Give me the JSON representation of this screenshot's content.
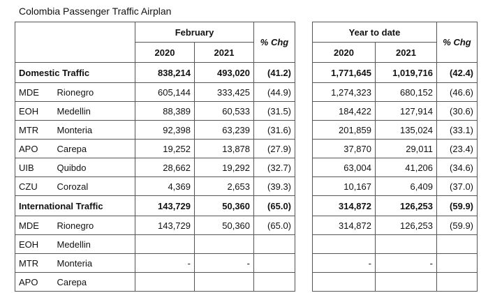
{
  "title": "Colombia Passenger Traffic Airplan",
  "header": {
    "february": "February",
    "ytd": "Year to date",
    "y2020": "2020",
    "y2021": "2021",
    "pct_chg": "% Chg"
  },
  "rows": [
    {
      "type": "section",
      "label": "Domestic Traffic",
      "feb2020": "838,214",
      "feb2021": "493,020",
      "feb_chg": "(41.2)",
      "ytd2020": "1,771,645",
      "ytd2021": "1,019,716",
      "ytd_chg": "(42.4)"
    },
    {
      "type": "item",
      "code": "MDE",
      "city": "Rionegro",
      "feb2020": "605,144",
      "feb2021": "333,425",
      "feb_chg": "(44.9)",
      "ytd2020": "1,274,323",
      "ytd2021": "680,152",
      "ytd_chg": "(46.6)"
    },
    {
      "type": "item",
      "code": "EOH",
      "city": "Medellin",
      "feb2020": "88,389",
      "feb2021": "60,533",
      "feb_chg": "(31.5)",
      "ytd2020": "184,422",
      "ytd2021": "127,914",
      "ytd_chg": "(30.6)"
    },
    {
      "type": "item",
      "code": "MTR",
      "city": "Monteria",
      "feb2020": "92,398",
      "feb2021": "63,239",
      "feb_chg": "(31.6)",
      "ytd2020": "201,859",
      "ytd2021": "135,024",
      "ytd_chg": "(33.1)"
    },
    {
      "type": "item",
      "code": "APO",
      "city": "Carepa",
      "feb2020": "19,252",
      "feb2021": "13,878",
      "feb_chg": "(27.9)",
      "ytd2020": "37,870",
      "ytd2021": "29,011",
      "ytd_chg": "(23.4)"
    },
    {
      "type": "item",
      "code": "UIB",
      "city": "Quibdo",
      "feb2020": "28,662",
      "feb2021": "19,292",
      "feb_chg": "(32.7)",
      "ytd2020": "63,004",
      "ytd2021": "41,206",
      "ytd_chg": "(34.6)"
    },
    {
      "type": "item",
      "code": "CZU",
      "city": "Corozal",
      "feb2020": "4,369",
      "feb2021": "2,653",
      "feb_chg": "(39.3)",
      "ytd2020": "10,167",
      "ytd2021": "6,409",
      "ytd_chg": "(37.0)"
    },
    {
      "type": "section",
      "label": "International Traffic",
      "feb2020": "143,729",
      "feb2021": "50,360",
      "feb_chg": "(65.0)",
      "ytd2020": "314,872",
      "ytd2021": "126,253",
      "ytd_chg": "(59.9)"
    },
    {
      "type": "item",
      "code": "MDE",
      "city": "Rionegro",
      "feb2020": "143,729",
      "feb2021": "50,360",
      "feb_chg": "(65.0)",
      "ytd2020": "314,872",
      "ytd2021": "126,253",
      "ytd_chg": "(59.9)"
    },
    {
      "type": "item",
      "code": "EOH",
      "city": "Medellin",
      "feb2020": "",
      "feb2021": "",
      "feb_chg": "",
      "ytd2020": "",
      "ytd2021": "",
      "ytd_chg": ""
    },
    {
      "type": "item",
      "code": "MTR",
      "city": "Monteria",
      "feb2020": "-",
      "feb2021": "-",
      "feb_chg": "",
      "ytd2020": "-",
      "ytd2021": "-",
      "ytd_chg": ""
    },
    {
      "type": "item",
      "code": "APO",
      "city": "Carepa",
      "feb2020": "",
      "feb2021": "",
      "feb_chg": "",
      "ytd2020": "",
      "ytd2021": "",
      "ytd_chg": ""
    }
  ]
}
